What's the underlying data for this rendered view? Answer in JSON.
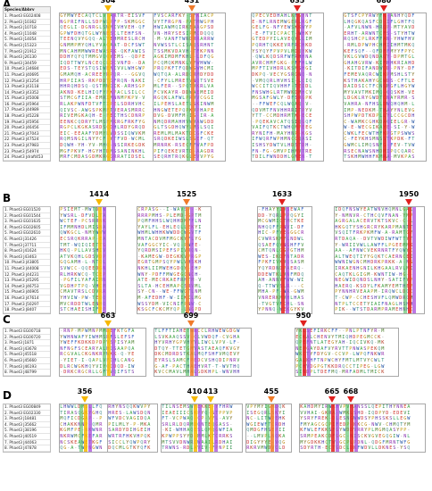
{
  "colors": {
    "yellow": "#f6b700",
    "orange": "#f07a2a",
    "red": "#e0201f",
    "purple": "#a54adb",
    "green": "#39b54a",
    "cyan": "#3fc6e0"
  },
  "panels": [
    {
      "label": "A",
      "species_header": "Species/Abbrv",
      "species": [
        "1. Phaet3 EG02408",
        "2. Phaet3 J10362",
        "3. Phaet3 J10718",
        "4. Phaet3 J11048",
        "5. Phaet3 J14054",
        "6. Phaet3 J15323",
        "7. Phaet3 J21912",
        "8. Phaet3 J26130",
        "9. Phaet3 J34459",
        "10. Phaet3 J34684",
        "11. Phaet3 J40695",
        "12. Phaet3 J41254",
        "13. Phaet3 J43118",
        "14. Phaet3 J43352",
        "15. Phaet3 J45008",
        "16. Phaet3 J45964",
        "17. Phaet3 J44989",
        "18. Phaet3 J45228",
        "19. Phaet3 J45956",
        "20. Phaet3 J46456",
        "21. Phaet3 J47043",
        "22. Phaet3 J47524",
        "23. Phaet3 J47983",
        "23. Phaet3 J54974",
        "24. Phaet3 Jdraft453"
      ],
      "markers": [
        {
          "label": "304",
          "color": "yellow"
        },
        {
          "label": "431",
          "color": "orange"
        },
        {
          "label": "635",
          "color": "red"
        },
        {
          "label": "680",
          "color": "red"
        }
      ]
    },
    {
      "label": "B",
      "species": [
        "1. Phaet3 EG01520",
        "2. Phaet3 EG01544",
        "3. Phaet3 EG01635",
        "4. Phaet3 EG02605",
        "5. Phaet3 EG02610",
        "6. Phaet3 J31426",
        "7. Phaet3 J37711",
        "8. Phaet3 J41624",
        "9. Phaet3 J43463",
        "10. Phaet3 J43805",
        "11. Phaet3 J44008",
        "12. Phaet3 J44231",
        "13. Phaet3 J45295",
        "14. Phaet3 J46753",
        "15. Phaet3 J46905",
        "16. Phaet3 J47614",
        "17. Phaet3 J50297",
        "18. Phaet3 J8407"
      ],
      "markers": [
        {
          "label": "1414",
          "color": "yellow"
        },
        {
          "label": "1525",
          "color": "orange"
        },
        {
          "label": "1633",
          "color": "red"
        },
        {
          "label": "1950",
          "color": "red"
        }
      ]
    },
    {
      "label": "C",
      "species": [
        "1. Phaet3 EG00718",
        "2. Phaet3 EG00720",
        "3. Phaet3 J1871",
        "4. Phaet3 J43678",
        "5. Phaet3 J45518",
        "6. Phaet3 J45660",
        "7. Phaet3 J46193",
        "8. Phaet3 J48799"
      ],
      "markers": [
        {
          "label": "663",
          "color": "yellow"
        },
        {
          "label": "699",
          "color": "orange"
        },
        {
          "label": "950",
          "color": "red"
        }
      ]
    },
    {
      "label": "D",
      "species": [
        "1. Phaet3 EG00849",
        "2. Phaet3 EG02330",
        "3. Phaet3 J18481",
        "4. Phaet3 J35662",
        "5. Phaet3 J38196",
        "6. Phaet3 J40519",
        "7. Phaet3 J44063",
        "8. Phaet3 J47878"
      ],
      "markers": [
        {
          "label": "356",
          "color": "yellow"
        },
        {
          "label": "410",
          "color": "yellow"
        },
        {
          "label": "413",
          "color": "yellow"
        },
        {
          "label": "455",
          "color": "orange"
        },
        {
          "label": "665",
          "color": "red"
        },
        {
          "label": "668",
          "color": "red"
        }
      ]
    }
  ]
}
